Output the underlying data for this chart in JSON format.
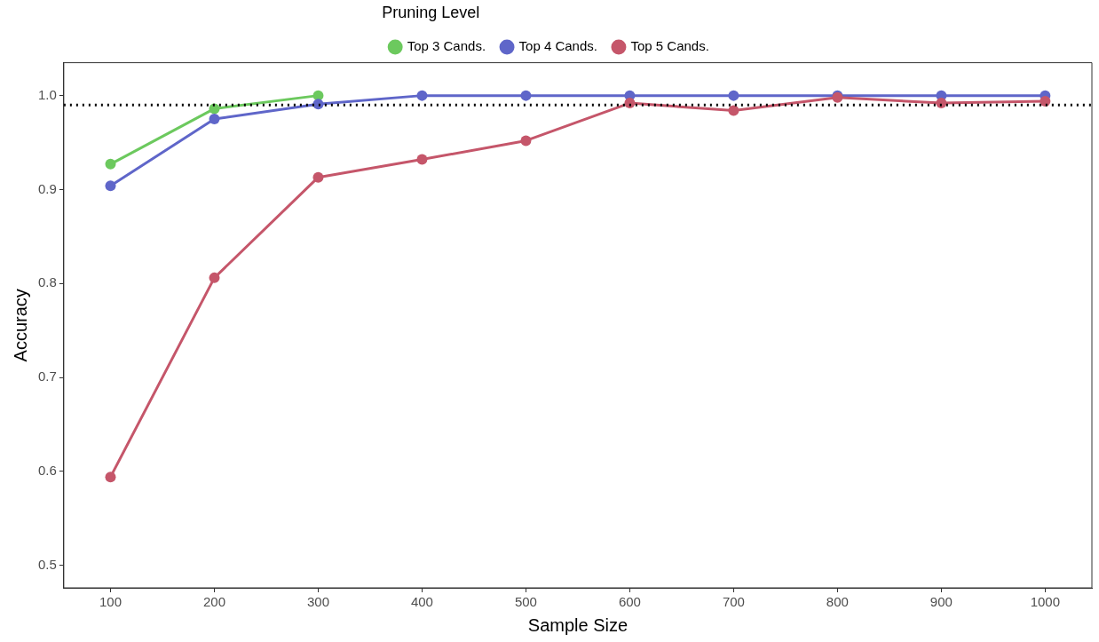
{
  "chart_data": {
    "type": "line",
    "xlabel": "Sample Size",
    "ylabel": "Accuracy",
    "legend_title": "Pruning Level",
    "legend": "top",
    "grid": false,
    "marker": "circle",
    "line_style": "solid",
    "x": [
      100,
      200,
      300,
      400,
      500,
      600,
      700,
      800,
      900,
      1000
    ],
    "xlim": [
      55,
      1045
    ],
    "xticks": [
      100,
      200,
      300,
      400,
      500,
      600,
      700,
      800,
      900,
      1000
    ],
    "ylim": [
      0.476,
      1.035
    ],
    "yticks": [
      {
        "value": 0.5,
        "label": "0.5"
      },
      {
        "value": 0.6,
        "label": "0.6"
      },
      {
        "value": 0.7,
        "label": "0.7"
      },
      {
        "value": 0.8,
        "label": "0.8"
      },
      {
        "value": 0.9,
        "label": "0.9"
      },
      {
        "value": 1.0,
        "label": "1.0"
      }
    ],
    "ref_lines": [
      {
        "axis": "y",
        "value": 0.99,
        "color": "#000000",
        "line_style": "dotted"
      }
    ],
    "series": [
      {
        "name": "Top 3 Cands.",
        "color": "#6cc95e",
        "values": [
          0.927,
          0.986,
          1.0,
          null,
          null,
          null,
          null,
          null,
          null,
          null
        ]
      },
      {
        "name": "Top 4 Cands.",
        "color": "#5f66c9",
        "values": [
          0.904,
          0.975,
          0.991,
          1.0,
          1.0,
          1.0,
          1.0,
          1.0,
          1.0,
          1.0
        ]
      },
      {
        "name": "Top 5 Cands.",
        "color": "#c5566a",
        "values": [
          0.594,
          0.806,
          0.913,
          0.932,
          0.952,
          0.992,
          0.984,
          0.998,
          0.992,
          0.994
        ]
      }
    ]
  }
}
